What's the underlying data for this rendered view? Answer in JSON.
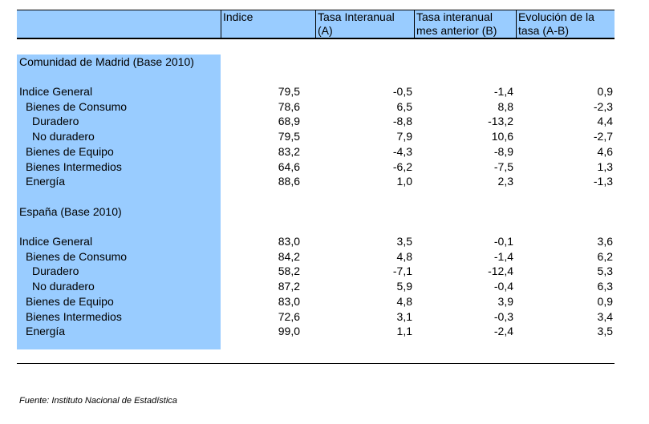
{
  "headers": {
    "c1": "Indice",
    "c2a": "Tasa Interanual",
    "c2b": "(A)",
    "c3a": "Tasa interanual",
    "c3b": "mes anterior (B)",
    "c4a": "Evolución de la",
    "c4b": "tasa (A-B)"
  },
  "sections": [
    {
      "title": "Comunidad de Madrid (Base 2010)",
      "rows": [
        {
          "label": "Indice General",
          "indent": 0,
          "v": [
            "79,5",
            "-0,5",
            "-1,4",
            "0,9"
          ]
        },
        {
          "label": "Bienes de Consumo",
          "indent": 1,
          "v": [
            "78,6",
            "6,5",
            "8,8",
            "-2,3"
          ]
        },
        {
          "label": "Duradero",
          "indent": 2,
          "v": [
            "68,9",
            "-8,8",
            "-13,2",
            "4,4"
          ]
        },
        {
          "label": "No duradero",
          "indent": 2,
          "v": [
            "79,5",
            "7,9",
            "10,6",
            "-2,7"
          ]
        },
        {
          "label": "Bienes de Equipo",
          "indent": 1,
          "v": [
            "83,2",
            "-4,3",
            "-8,9",
            "4,6"
          ]
        },
        {
          "label": "Bienes Intermedios",
          "indent": 1,
          "v": [
            "64,6",
            "-6,2",
            "-7,5",
            "1,3"
          ]
        },
        {
          "label": "Energía",
          "indent": 1,
          "v": [
            "88,6",
            "1,0",
            "2,3",
            "-1,3"
          ]
        }
      ]
    },
    {
      "title": "España (Base 2010)",
      "rows": [
        {
          "label": "Indice General",
          "indent": 0,
          "v": [
            "83,0",
            "3,5",
            "-0,1",
            "3,6"
          ]
        },
        {
          "label": "Bienes de Consumo",
          "indent": 1,
          "v": [
            "84,2",
            "4,8",
            "-1,4",
            "6,2"
          ]
        },
        {
          "label": "Duradero",
          "indent": 2,
          "v": [
            "58,2",
            "-7,1",
            "-12,4",
            "5,3"
          ]
        },
        {
          "label": "No duradero",
          "indent": 2,
          "v": [
            "87,2",
            "5,9",
            "-0,4",
            "6,3"
          ]
        },
        {
          "label": "Bienes de Equipo",
          "indent": 1,
          "v": [
            "83,0",
            "4,8",
            "3,9",
            "0,9"
          ]
        },
        {
          "label": "Bienes Intermedios",
          "indent": 1,
          "v": [
            "72,6",
            "3,1",
            "-0,3",
            "3,4"
          ]
        },
        {
          "label": "Energía",
          "indent": 1,
          "v": [
            "99,0",
            "1,1",
            "-2,4",
            "3,5"
          ]
        }
      ]
    }
  ],
  "source": "Fuente: Instituto Nacional de Estadística",
  "colors": {
    "band": "#99ccff",
    "rule": "#000000"
  }
}
